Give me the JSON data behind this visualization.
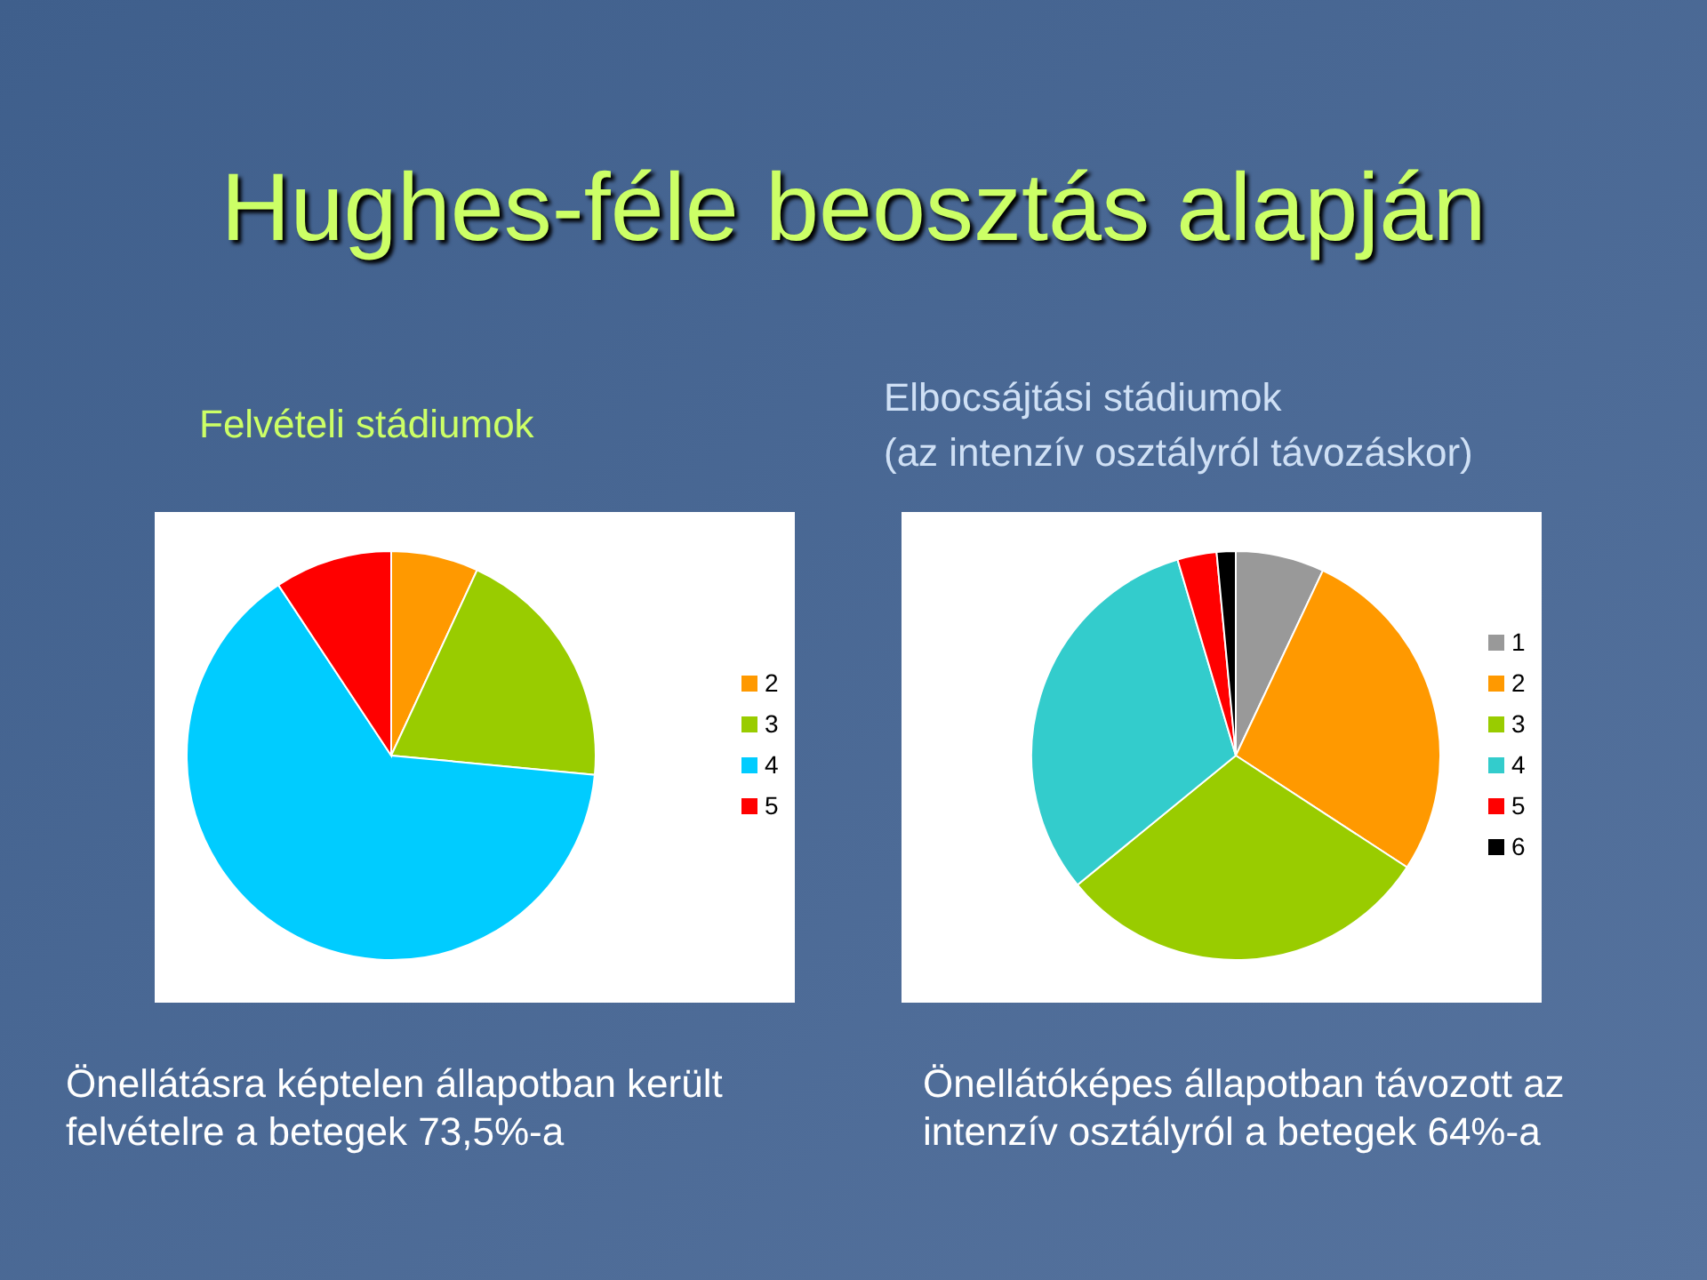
{
  "chart_data": [
    {
      "type": "other",
      "title": "Hughes-féle beosztás alapján"
    },
    {
      "type": "pie",
      "title": "Felvételi stádiumok",
      "categories": [
        "2",
        "3",
        "4",
        "5"
      ],
      "values": [
        6.9,
        19.6,
        64.2,
        9.3
      ],
      "colors": [
        "#ff9900",
        "#99cc00",
        "#00ccff",
        "#ff0000"
      ],
      "legend": "right",
      "annotations": [
        "Önellátásra képtelen állapotban került felvételre a betegek 73,5%-a"
      ]
    },
    {
      "type": "pie",
      "title": "Elbocsájtási stádiumok",
      "subtitle": "(az intenzív osztályról távozáskor)",
      "categories": [
        "1",
        "2",
        "3",
        "4",
        "5",
        "6"
      ],
      "values": [
        7.0,
        27.2,
        29.9,
        31.3,
        3.1,
        1.5
      ],
      "colors": [
        "#999999",
        "#ff9900",
        "#99cc00",
        "#33cccc",
        "#ff0000",
        "#000000"
      ],
      "legend": "right",
      "annotations": [
        "Önellátóképes állapotban távozott az intenzív osztályról a betegek 64%-a"
      ]
    }
  ]
}
